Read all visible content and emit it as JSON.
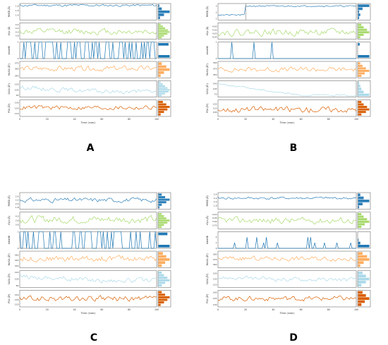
{
  "colors": {
    "rmsd": "#2c7fb8",
    "rgyr": "#a6d96a",
    "intrahb": "#1f78b4",
    "molsa": "#fdae61",
    "sasa": "#abd9e9",
    "psa": "#d95f02",
    "axis": "#555555"
  },
  "chart_data": [
    {
      "panel_label": "A",
      "type": "line",
      "xlabel": "Time (nsec)",
      "xlim": [
        0,
        100
      ],
      "xticks": [
        "0",
        "20",
        "40",
        "60",
        "80",
        "100"
      ],
      "series": [
        {
          "ylabel": "RMSD (Å)",
          "color_key": "rmsd",
          "kind": "noisy",
          "ylim": [
            1.2,
            1.9
          ],
          "yticks": [
            "1.4",
            "1.6",
            "1.8"
          ],
          "base": 1.82,
          "amp": 0.04,
          "seed": 11,
          "hist": [
            0.15,
            0.5,
            1.0,
            0.3,
            0.08
          ]
        },
        {
          "ylabel": "rGyr (Å)",
          "color_key": "rgyr",
          "kind": "noisy",
          "ylim": [
            3.6,
            4.5
          ],
          "yticks": [
            "3.8",
            "4.0",
            "4.2",
            "4.4"
          ],
          "base": 4.02,
          "amp": 0.14,
          "seed": 12,
          "hist": [
            0.3,
            0.5,
            0.8,
            1.0,
            0.85,
            0.6,
            0.4,
            0.2
          ]
        },
        {
          "ylabel": "intraHB",
          "color_key": "intrahb",
          "kind": "binary",
          "ylim": [
            0,
            1
          ],
          "yticks": [
            "0",
            "1"
          ],
          "p": 0.5,
          "seed": 13,
          "hist": [
            1.0,
            0,
            0,
            0,
            0.9
          ]
        },
        {
          "ylabel": "MolSA (Å²)",
          "color_key": "molsa",
          "kind": "noisy",
          "ylim": [
            335,
            380
          ],
          "yticks": [
            "340",
            "360",
            "375"
          ],
          "base": 360,
          "amp": 6,
          "seed": 14,
          "hist": [
            0.2,
            0.5,
            1.0,
            0.7,
            0.3
          ]
        },
        {
          "ylabel": "SASA (Å²)",
          "color_key": "sasa",
          "kind": "drift",
          "ylim": [
            85,
            130
          ],
          "yticks": [
            "90",
            "105",
            "120"
          ],
          "start": 112,
          "end": 100,
          "amp": 5,
          "seed": 15,
          "hist": [
            0.3,
            0.6,
            0.9,
            1.0,
            0.8,
            0.6,
            0.4,
            0.2
          ]
        },
        {
          "ylabel": "PSA (Å²)",
          "color_key": "psa",
          "kind": "noisy",
          "ylim": [
            105,
            135
          ],
          "yticks": [
            "110",
            "120",
            "130"
          ],
          "base": 121,
          "amp": 3.5,
          "seed": 16,
          "hist": [
            0.2,
            0.5,
            0.8,
            1.0,
            0.7,
            0.4
          ]
        }
      ]
    },
    {
      "panel_label": "B",
      "type": "line",
      "xlabel": "Time (nsec)",
      "xlim": [
        0,
        100
      ],
      "xticks": [
        "0",
        "20",
        "40",
        "60",
        "80",
        "100"
      ],
      "series": [
        {
          "ylabel": "RMSD (Å)",
          "color_key": "rmsd",
          "kind": "step",
          "ylim": [
            0.8,
            3.4
          ],
          "yticks": [
            "1",
            "2",
            "3"
          ],
          "v0": 1.6,
          "v1": 3.0,
          "t": 20,
          "amp": 0.1,
          "seed": 21,
          "hist": [
            0.1,
            0.2,
            0.1,
            0.4,
            1.0
          ]
        },
        {
          "ylabel": "rGyr (Å)",
          "color_key": "rgyr",
          "kind": "noisy",
          "ylim": [
            3.95,
            4.65
          ],
          "yticks": [
            "4.05",
            "4.20",
            "4.35",
            "4.50"
          ],
          "base": 4.25,
          "amp": 0.12,
          "seed": 22,
          "hist": [
            0.2,
            0.5,
            1.0,
            0.8,
            0.5,
            0.3
          ]
        },
        {
          "ylabel": "intraHB",
          "color_key": "intrahb",
          "kind": "binary",
          "ylim": [
            0,
            1
          ],
          "yticks": [
            "0",
            "1"
          ],
          "p": 0.06,
          "seed": 23,
          "hist": [
            1.0,
            0,
            0,
            0,
            0.15
          ]
        },
        {
          "ylabel": "MolSA (Å²)",
          "color_key": "molsa",
          "kind": "noisy",
          "ylim": [
            340,
            395
          ],
          "yticks": [
            "350",
            "370",
            "390"
          ],
          "base": 368,
          "amp": 7,
          "seed": 24,
          "hist": [
            0.3,
            0.6,
            1.0,
            0.7,
            0.4,
            0.2
          ]
        },
        {
          "ylabel": "SASA (Å²)",
          "color_key": "sasa",
          "kind": "drift",
          "ylim": [
            50,
            160
          ],
          "yticks": [
            "70",
            "105",
            "140"
          ],
          "start": 140,
          "end": 62,
          "amp": 4,
          "seed": 25,
          "hist": [
            1.0,
            0.5,
            0.3,
            0.2,
            0.1
          ]
        },
        {
          "ylabel": "PSA (Å²)",
          "color_key": "psa",
          "kind": "noisy",
          "ylim": [
            90,
            130
          ],
          "yticks": [
            "100",
            "110",
            "120"
          ],
          "base": 107,
          "amp": 6,
          "seed": 26,
          "hist": [
            0.3,
            0.7,
            1.0,
            0.8,
            0.5,
            0.3
          ]
        }
      ]
    },
    {
      "panel_label": "C",
      "type": "line",
      "xlabel": "Time (nsec)",
      "xlim": [
        0,
        100
      ],
      "xticks": [
        "0",
        "20",
        "40",
        "60",
        "80",
        "100"
      ],
      "series": [
        {
          "ylabel": "RMSD (Å)",
          "color_key": "rmsd",
          "kind": "noisy",
          "ylim": [
            1.7,
            2.6
          ],
          "yticks": [
            "1.8",
            "2.0",
            "2.2",
            "2.4"
          ],
          "base": 2.2,
          "amp": 0.1,
          "seed": 31,
          "hist": [
            0.1,
            0.3,
            0.7,
            1.0,
            0.6,
            0.3
          ]
        },
        {
          "ylabel": "rGyr (Å)",
          "color_key": "rgyr",
          "kind": "noisy",
          "ylim": [
            3.4,
            4.2
          ],
          "yticks": [
            "3.6",
            "3.8",
            "4.0"
          ],
          "base": 3.85,
          "amp": 0.15,
          "seed": 32,
          "hist": [
            0.3,
            0.5,
            0.8,
            1.0,
            0.7,
            0.5,
            0.3
          ]
        },
        {
          "ylabel": "intraHB",
          "color_key": "intrahb",
          "kind": "binary",
          "ylim": [
            0,
            1
          ],
          "yticks": [
            "0",
            "1"
          ],
          "p": 0.45,
          "seed": 33,
          "hist": [
            1.0,
            0,
            0,
            0,
            0.8
          ]
        },
        {
          "ylabel": "MolSA (Å²)",
          "color_key": "molsa",
          "kind": "noisy",
          "ylim": [
            325,
            370
          ],
          "yticks": [
            "330",
            "345",
            "360"
          ],
          "base": 350,
          "amp": 7,
          "seed": 34,
          "hist": [
            0.3,
            0.6,
            1.0,
            0.7,
            0.4
          ]
        },
        {
          "ylabel": "SASA (Å²)",
          "color_key": "sasa",
          "kind": "drift",
          "ylim": [
            75,
            125
          ],
          "yticks": [
            "80",
            "100",
            "120"
          ],
          "start": 108,
          "end": 96,
          "amp": 6,
          "seed": 35,
          "hist": [
            0.3,
            0.6,
            1.0,
            0.8,
            0.5,
            0.3
          ]
        },
        {
          "ylabel": "PSA (Å²)",
          "color_key": "psa",
          "kind": "noisy",
          "ylim": [
            115,
            150
          ],
          "yticks": [
            "120",
            "130",
            "140"
          ],
          "base": 132,
          "amp": 5,
          "seed": 36,
          "hist": [
            0.2,
            0.5,
            0.8,
            1.0,
            0.6,
            0.3
          ]
        }
      ]
    },
    {
      "panel_label": "D",
      "type": "line",
      "xlabel": "Time (nsec)",
      "xlim": [
        0,
        100
      ],
      "xticks": [
        "0",
        "20",
        "40",
        "60",
        "80",
        "100"
      ],
      "series": [
        {
          "ylabel": "RMSD (Å)",
          "color_key": "rmsd",
          "kind": "noisy",
          "ylim": [
            1.6,
            2.5
          ],
          "yticks": [
            "1.8",
            "2.0",
            "2.2",
            "2.4"
          ],
          "base": 2.2,
          "amp": 0.06,
          "seed": 41,
          "hist": [
            0.1,
            0.4,
            1.0,
            0.5,
            0.2
          ]
        },
        {
          "ylabel": "rGyr (Å)",
          "color_key": "rgyr",
          "kind": "noisy",
          "ylim": [
            3.6,
            4.3
          ],
          "yticks": [
            "3.75",
            "3.90",
            "4.05",
            "4.20"
          ],
          "base": 3.95,
          "amp": 0.11,
          "seed": 42,
          "hist": [
            0.3,
            0.6,
            1.0,
            0.8,
            0.5,
            0.3
          ]
        },
        {
          "ylabel": "intraHB",
          "color_key": "intrahb",
          "kind": "binary",
          "ylim": [
            0,
            3
          ],
          "yticks": [
            "0",
            "1",
            "2"
          ],
          "p": 0.1,
          "seed": 43,
          "hist": [
            1.0,
            0.2,
            0.05,
            0,
            0
          ]
        },
        {
          "ylabel": "MolSA (Å²)",
          "color_key": "molsa",
          "kind": "noisy",
          "ylim": [
            350,
            400
          ],
          "yticks": [
            "360",
            "375",
            "390"
          ],
          "base": 378,
          "amp": 6,
          "seed": 44,
          "hist": [
            0.2,
            0.5,
            1.0,
            0.8,
            0.4
          ]
        },
        {
          "ylabel": "SASA (Å²)",
          "color_key": "sasa",
          "kind": "drift",
          "ylim": [
            100,
            160
          ],
          "yticks": [
            "110",
            "130",
            "150"
          ],
          "start": 135,
          "end": 128,
          "amp": 6,
          "seed": 45,
          "hist": [
            0.3,
            0.7,
            1.0,
            0.7,
            0.4
          ]
        },
        {
          "ylabel": "PSA (Å²)",
          "color_key": "psa",
          "kind": "noisy",
          "ylim": [
            125,
            165
          ],
          "yticks": [
            "130",
            "145",
            "160"
          ],
          "base": 145,
          "amp": 5,
          "seed": 46,
          "hist": [
            0.3,
            0.6,
            1.0,
            0.7,
            0.4
          ]
        }
      ]
    }
  ]
}
